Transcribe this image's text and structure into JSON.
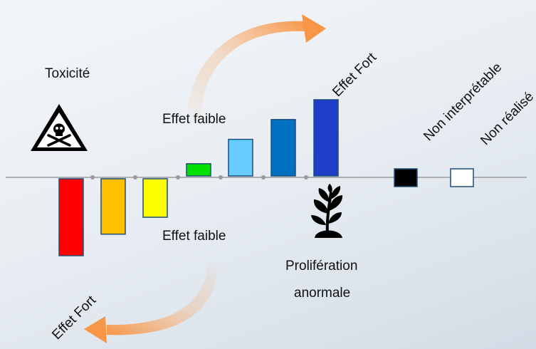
{
  "labels": {
    "toxicite": "Toxicité",
    "effet_fort_top": "Effet Fort",
    "effet_faible_top": "Effet faible",
    "effet_faible_bottom": "Effet faible",
    "effet_fort_bottom": "Effet Fort",
    "non_interpretable": "Non interprétable",
    "non_realise": "Non réalisé",
    "proliferation_line1": "Prolifération",
    "proliferation_line2": "anormale"
  },
  "bars_negative": [
    {
      "level": 1.0,
      "color": "#ff0000"
    },
    {
      "level": 0.72,
      "color": "#ffc000"
    },
    {
      "level": 0.5,
      "color": "#ffff00"
    }
  ],
  "bars_positive": [
    {
      "level": 0.16,
      "color": "#00e000"
    },
    {
      "level": 0.48,
      "color": "#66ccff"
    },
    {
      "level": 0.74,
      "color": "#0070c0"
    },
    {
      "level": 1.0,
      "color": "#1f3ec8"
    }
  ],
  "extra_boxes": [
    {
      "meaning": "non interprétable",
      "color": "#000000"
    },
    {
      "meaning": "non réalisé",
      "color": "#ffffff"
    }
  ],
  "colors": {
    "axis": "#9a9a9a",
    "bar_border": "#1f4e79",
    "arrow": "#f79646"
  },
  "icons": [
    "toxicity-hazard-icon",
    "plant-sprout-icon"
  ]
}
